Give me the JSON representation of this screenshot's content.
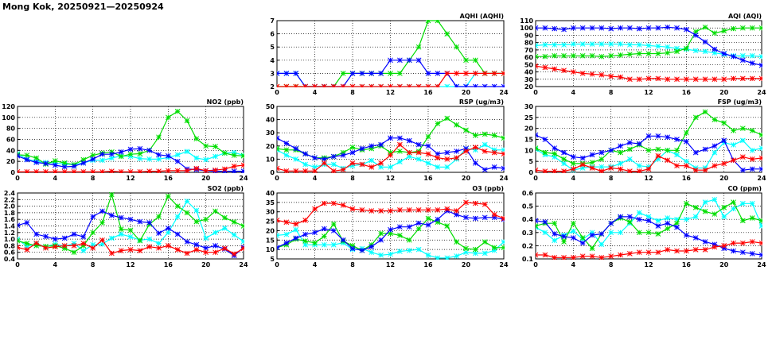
{
  "title": "Mong Kok, 20250921—20250924",
  "colors": {
    "red": "#ff0000",
    "green": "#00dd00",
    "blue": "#0000ff",
    "cyan": "#00ffff"
  },
  "chart_data": [
    {
      "type": "line",
      "title": "AQHI (AQHI)",
      "ylim": [
        2,
        7
      ],
      "yticks": [
        "2",
        "3",
        "4",
        "5",
        "6",
        "7"
      ],
      "xlim": [
        0,
        24
      ],
      "xticks": [
        "0",
        "4",
        "8",
        "12",
        "16",
        "20",
        "24"
      ],
      "grid": true,
      "series": [
        {
          "name": "cyan",
          "values": [
            3,
            3,
            3,
            2,
            2,
            2,
            2,
            2,
            2,
            2,
            2,
            2,
            2,
            2,
            2,
            2,
            2,
            2,
            2,
            2,
            2,
            3,
            3,
            3,
            3
          ]
        },
        {
          "name": "green",
          "values": [
            2,
            2,
            2,
            2,
            2,
            2,
            2,
            3,
            3,
            3,
            3,
            3,
            3,
            3,
            4,
            5,
            7,
            7,
            6,
            5,
            4,
            4,
            3,
            3,
            3
          ]
        },
        {
          "name": "blue",
          "values": [
            3,
            3,
            3,
            2,
            2,
            2,
            2,
            2,
            3,
            3,
            3,
            3,
            4,
            4,
            4,
            4,
            3,
            3,
            3,
            2,
            2,
            2,
            2,
            2,
            2
          ]
        },
        {
          "name": "red",
          "values": [
            2,
            2,
            2,
            2,
            2,
            2,
            2,
            2,
            2,
            2,
            2,
            2,
            2,
            2,
            2,
            2,
            2,
            2,
            3,
            3,
            3,
            3,
            3,
            3,
            3
          ]
        }
      ]
    },
    {
      "type": "line",
      "title": "AQI (AQI)",
      "ylim": [
        20,
        110
      ],
      "yticks": [
        "20",
        "30",
        "40",
        "50",
        "60",
        "70",
        "80",
        "90",
        "100",
        "110"
      ],
      "xlim": [
        0,
        24
      ],
      "xticks": [
        "0",
        "4",
        "8",
        "12",
        "16",
        "20",
        "24"
      ],
      "grid": true,
      "series": [
        {
          "name": "cyan",
          "values": [
            76,
            77,
            77,
            77,
            78,
            78,
            78,
            78,
            78,
            78,
            77,
            77,
            76,
            75,
            74,
            72,
            71,
            69,
            68,
            66,
            64,
            62,
            62,
            62,
            61
          ]
        },
        {
          "name": "green",
          "values": [
            61,
            61,
            62,
            62,
            62,
            62,
            62,
            61,
            62,
            63,
            64,
            65,
            65,
            65,
            66,
            68,
            72,
            95,
            101,
            93,
            96,
            99,
            100,
            100,
            100
          ]
        },
        {
          "name": "blue",
          "values": [
            100,
            100,
            99,
            98,
            100,
            100,
            100,
            100,
            99,
            100,
            100,
            99,
            100,
            100,
            101,
            100,
            98,
            90,
            81,
            71,
            65,
            61,
            56,
            52,
            49
          ]
        },
        {
          "name": "red",
          "values": [
            48,
            46,
            44,
            42,
            40,
            38,
            37,
            36,
            34,
            33,
            30,
            30,
            31,
            31,
            30,
            30,
            30,
            30,
            30,
            30,
            30,
            31,
            31,
            31,
            31
          ]
        }
      ]
    },
    {
      "type": "line",
      "title": "NO2 (ppb)",
      "ylim": [
        0,
        120
      ],
      "yticks": [
        "0",
        "20",
        "40",
        "60",
        "80",
        "100",
        "120"
      ],
      "xlim": [
        0,
        24
      ],
      "xticks": [
        "0",
        "4",
        "8",
        "12",
        "16",
        "20",
        "24"
      ],
      "grid": true,
      "series": [
        {
          "name": "cyan",
          "values": [
            34,
            24,
            20,
            18,
            17,
            15,
            14,
            17,
            22,
            22,
            26,
            30,
            29,
            25,
            24,
            24,
            27,
            32,
            38,
            26,
            23,
            29,
            35,
            36,
            31
          ]
        },
        {
          "name": "green",
          "values": [
            32,
            31,
            26,
            15,
            21,
            17,
            14,
            23,
            31,
            35,
            37,
            29,
            33,
            34,
            40,
            64,
            100,
            111,
            94,
            61,
            48,
            47,
            35,
            31,
            30
          ]
        },
        {
          "name": "blue",
          "values": [
            30,
            23,
            18,
            16,
            13,
            10,
            11,
            17,
            24,
            33,
            33,
            37,
            42,
            43,
            40,
            32,
            30,
            20,
            6,
            5,
            3,
            2,
            2,
            2,
            2
          ]
        },
        {
          "name": "red",
          "values": [
            1,
            1,
            1,
            1,
            1,
            1,
            1,
            1,
            1,
            1,
            2,
            1,
            1,
            1,
            2,
            2,
            3,
            3,
            3,
            7,
            3,
            4,
            6,
            11,
            13
          ]
        }
      ]
    },
    {
      "type": "line",
      "title": "RSP (ug/m3)",
      "ylim": [
        0,
        50
      ],
      "yticks": [
        "0",
        "10",
        "20",
        "30",
        "40",
        "50"
      ],
      "xlim": [
        0,
        24
      ],
      "xticks": [
        "0",
        "4",
        "8",
        "12",
        "16",
        "20",
        "24"
      ],
      "grid": true,
      "series": [
        {
          "name": "cyan",
          "values": [
            17,
            13,
            10,
            6,
            4,
            6,
            6,
            3,
            5,
            6,
            9,
            4,
            4,
            8,
            12,
            10,
            7,
            4,
            4,
            10,
            18,
            17,
            21,
            17,
            17
          ]
        },
        {
          "name": "green",
          "values": [
            18,
            17,
            17,
            14,
            11,
            11,
            12,
            15,
            19,
            17,
            18,
            20,
            15,
            16,
            15,
            16,
            27,
            37,
            41,
            36,
            32,
            28,
            29,
            28,
            26
          ]
        },
        {
          "name": "blue",
          "values": [
            26,
            22,
            18,
            14,
            11,
            10,
            12,
            13,
            15,
            18,
            20,
            21,
            26,
            26,
            24,
            21,
            20,
            14,
            15,
            16,
            18,
            7,
            2,
            4,
            3
          ]
        },
        {
          "name": "red",
          "values": [
            3,
            1,
            1,
            1,
            1,
            7,
            1,
            2,
            7,
            6,
            4,
            7,
            13,
            21,
            15,
            15,
            14,
            11,
            10,
            11,
            16,
            19,
            16,
            15,
            14
          ]
        }
      ]
    },
    {
      "type": "line",
      "title": "FSP (ug/m3)",
      "ylim": [
        0,
        30
      ],
      "yticks": [
        "0",
        "5",
        "10",
        "15",
        "20",
        "25",
        "30"
      ],
      "xlim": [
        0,
        24
      ],
      "xticks": [
        "0",
        "4",
        "8",
        "12",
        "16",
        "20",
        "24"
      ],
      "grid": true,
      "series": [
        {
          "name": "cyan",
          "values": [
            10.5,
            8,
            7,
            4,
            1,
            2,
            2.5,
            2.5,
            2.5,
            4,
            6,
            3,
            2.5,
            6,
            10,
            8,
            5,
            2,
            2,
            9,
            13.5,
            12.5,
            14.5,
            10,
            11
          ]
        },
        {
          "name": "green",
          "values": [
            11,
            9,
            8.5,
            6,
            4,
            4,
            4.5,
            6,
            10,
            9,
            10.5,
            12.5,
            10,
            10.5,
            10,
            10,
            18,
            25,
            27.5,
            24,
            22.5,
            19,
            20,
            19,
            17
          ]
        },
        {
          "name": "blue",
          "values": [
            17,
            15,
            11,
            9,
            7,
            6.5,
            8,
            9,
            10,
            12,
            13.5,
            13,
            16.5,
            16.5,
            16,
            15,
            14,
            9,
            10.5,
            12,
            14.5,
            5.5,
            1,
            1.5,
            1.5
          ]
        },
        {
          "name": "red",
          "values": [
            1,
            0.5,
            0.5,
            0.5,
            1.5,
            3.5,
            2,
            0.5,
            2,
            1.5,
            0.5,
            0.5,
            1.5,
            7.5,
            5.5,
            3,
            3,
            1,
            1,
            3,
            4,
            5.5,
            7,
            6,
            6.5
          ]
        }
      ]
    },
    {
      "type": "line",
      "title": "SO2 (ppb)",
      "ylim": [
        0.4,
        2.4
      ],
      "yticks": [
        "0.4",
        "0.6",
        "0.8",
        "1.0",
        "1.2",
        "1.4",
        "1.6",
        "1.8",
        "2.0",
        "2.2",
        "2.4"
      ],
      "xlim": [
        0,
        24
      ],
      "xticks": [
        "0",
        "4",
        "8",
        "12",
        "16",
        "20",
        "24"
      ],
      "grid": true,
      "series": [
        {
          "name": "cyan",
          "values": [
            1.0,
            0.78,
            0.85,
            0.77,
            0.85,
            0.78,
            0.87,
            0.65,
            0.83,
            0.85,
            1.03,
            1.15,
            1.07,
            0.97,
            1.0,
            0.87,
            1.2,
            1.68,
            2.15,
            1.87,
            1.03,
            1.2,
            1.33,
            1.13,
            0.93
          ]
        },
        {
          "name": "green",
          "values": [
            0.95,
            0.87,
            0.8,
            0.78,
            0.8,
            0.72,
            0.6,
            0.8,
            1.2,
            1.5,
            2.35,
            1.3,
            1.27,
            0.95,
            1.45,
            1.68,
            2.3,
            2.0,
            1.8,
            1.53,
            1.6,
            1.85,
            1.65,
            1.52,
            1.4
          ]
        },
        {
          "name": "blue",
          "values": [
            1.42,
            1.5,
            1.15,
            1.08,
            1.0,
            1.03,
            1.15,
            1.07,
            1.68,
            1.85,
            1.72,
            1.65,
            1.6,
            1.53,
            1.5,
            1.18,
            1.33,
            1.15,
            0.92,
            0.83,
            0.73,
            0.8,
            0.7,
            0.5,
            0.75
          ]
        },
        {
          "name": "red",
          "values": [
            0.75,
            0.68,
            0.88,
            0.73,
            0.77,
            0.8,
            0.8,
            0.87,
            0.73,
            0.97,
            0.57,
            0.65,
            0.68,
            0.65,
            0.77,
            0.73,
            0.8,
            0.68,
            0.57,
            0.68,
            0.6,
            0.6,
            0.72,
            0.55,
            0.72
          ]
        }
      ]
    },
    {
      "type": "line",
      "title": "O3 (ppb)",
      "ylim": [
        5,
        40
      ],
      "yticks": [
        "5",
        "10",
        "15",
        "20",
        "25",
        "30",
        "35",
        "40"
      ],
      "xlim": [
        0,
        24
      ],
      "xticks": [
        "0",
        "4",
        "8",
        "12",
        "16",
        "20",
        "24"
      ],
      "grid": true,
      "series": [
        {
          "name": "cyan",
          "values": [
            17.5,
            18,
            20.5,
            12.5,
            12.5,
            12.5,
            12.5,
            13.5,
            10,
            10.5,
            8.5,
            7,
            7.5,
            9,
            9.5,
            10,
            7,
            5.5,
            5.5,
            6.5,
            8.5,
            8,
            8,
            9.5,
            14
          ]
        },
        {
          "name": "green",
          "values": [
            11,
            12.5,
            15.5,
            14.5,
            13.5,
            17,
            23.5,
            14.5,
            12,
            9.5,
            12.5,
            18.5,
            18.5,
            17.5,
            15,
            21,
            26.5,
            24.5,
            22.5,
            14,
            10.5,
            10,
            14,
            11,
            11
          ]
        },
        {
          "name": "blue",
          "values": [
            11,
            13.5,
            16,
            18,
            19,
            21,
            20,
            15,
            10.5,
            9.5,
            11.5,
            15,
            20.5,
            22,
            22,
            24,
            23,
            26,
            30.5,
            28.5,
            27,
            26.5,
            27,
            27,
            26
          ]
        },
        {
          "name": "red",
          "values": [
            25.5,
            24.5,
            23.5,
            25.5,
            31.5,
            34.5,
            34.5,
            33.5,
            31.5,
            31,
            30.5,
            30.5,
            30.5,
            31,
            31,
            31,
            31,
            31,
            31.5,
            30.5,
            35,
            34.5,
            34,
            28.5,
            26.5
          ]
        }
      ]
    },
    {
      "type": "line",
      "title": "CO (ppm)",
      "ylim": [
        0.1,
        0.6
      ],
      "yticks": [
        "0.1",
        "0.2",
        "0.3",
        "0.4",
        "0.5",
        "0.6"
      ],
      "xlim": [
        0,
        24
      ],
      "xticks": [
        "0",
        "4",
        "8",
        "12",
        "16",
        "20",
        "24"
      ],
      "grid": true,
      "series": [
        {
          "name": "cyan",
          "values": [
            0.34,
            0.3,
            0.24,
            0.28,
            0.31,
            0.25,
            0.3,
            0.21,
            0.3,
            0.3,
            0.37,
            0.45,
            0.42,
            0.39,
            0.41,
            0.4,
            0.4,
            0.42,
            0.53,
            0.55,
            0.42,
            0.48,
            0.52,
            0.52,
            0.35
          ]
        },
        {
          "name": "green",
          "values": [
            0.35,
            0.37,
            0.37,
            0.23,
            0.37,
            0.26,
            0.18,
            0.29,
            0.37,
            0.41,
            0.38,
            0.3,
            0.3,
            0.29,
            0.33,
            0.37,
            0.52,
            0.49,
            0.46,
            0.44,
            0.49,
            0.53,
            0.39,
            0.41,
            0.39
          ]
        },
        {
          "name": "blue",
          "values": [
            0.39,
            0.38,
            0.29,
            0.27,
            0.26,
            0.22,
            0.28,
            0.29,
            0.37,
            0.42,
            0.42,
            0.4,
            0.39,
            0.35,
            0.37,
            0.34,
            0.28,
            0.26,
            0.23,
            0.21,
            0.18,
            0.16,
            0.15,
            0.14,
            0.13
          ]
        },
        {
          "name": "red",
          "values": [
            0.13,
            0.13,
            0.11,
            0.11,
            0.11,
            0.12,
            0.12,
            0.11,
            0.12,
            0.13,
            0.14,
            0.15,
            0.15,
            0.15,
            0.17,
            0.16,
            0.16,
            0.17,
            0.17,
            0.19,
            0.2,
            0.22,
            0.22,
            0.23,
            0.22
          ]
        }
      ]
    }
  ]
}
